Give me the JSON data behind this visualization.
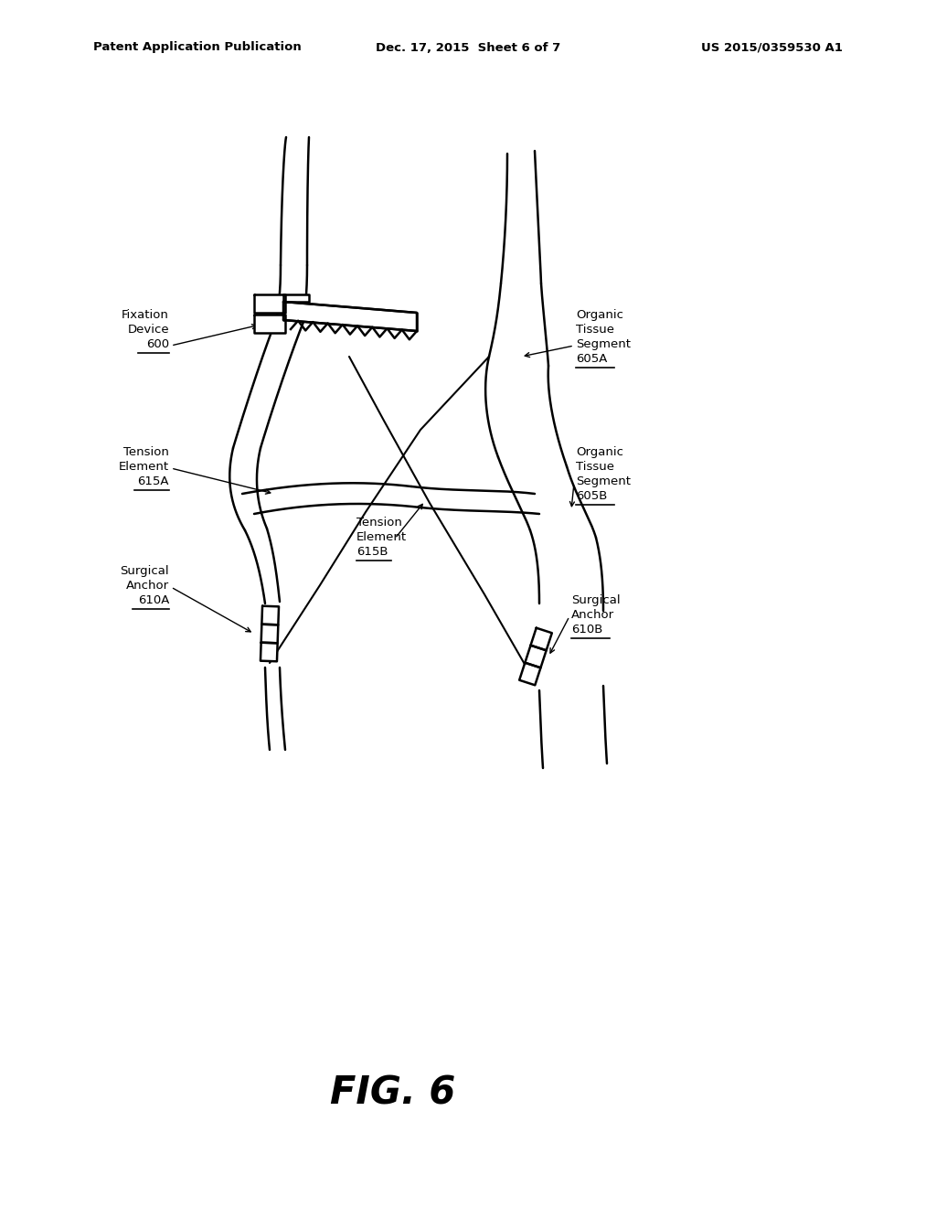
{
  "bg_color": "#ffffff",
  "line_color": "#000000",
  "header_left": "Patent Application Publication",
  "header_center": "Dec. 17, 2015  Sheet 6 of 7",
  "header_right": "US 2015/0359530 A1",
  "fig_label": "FIG. 6"
}
